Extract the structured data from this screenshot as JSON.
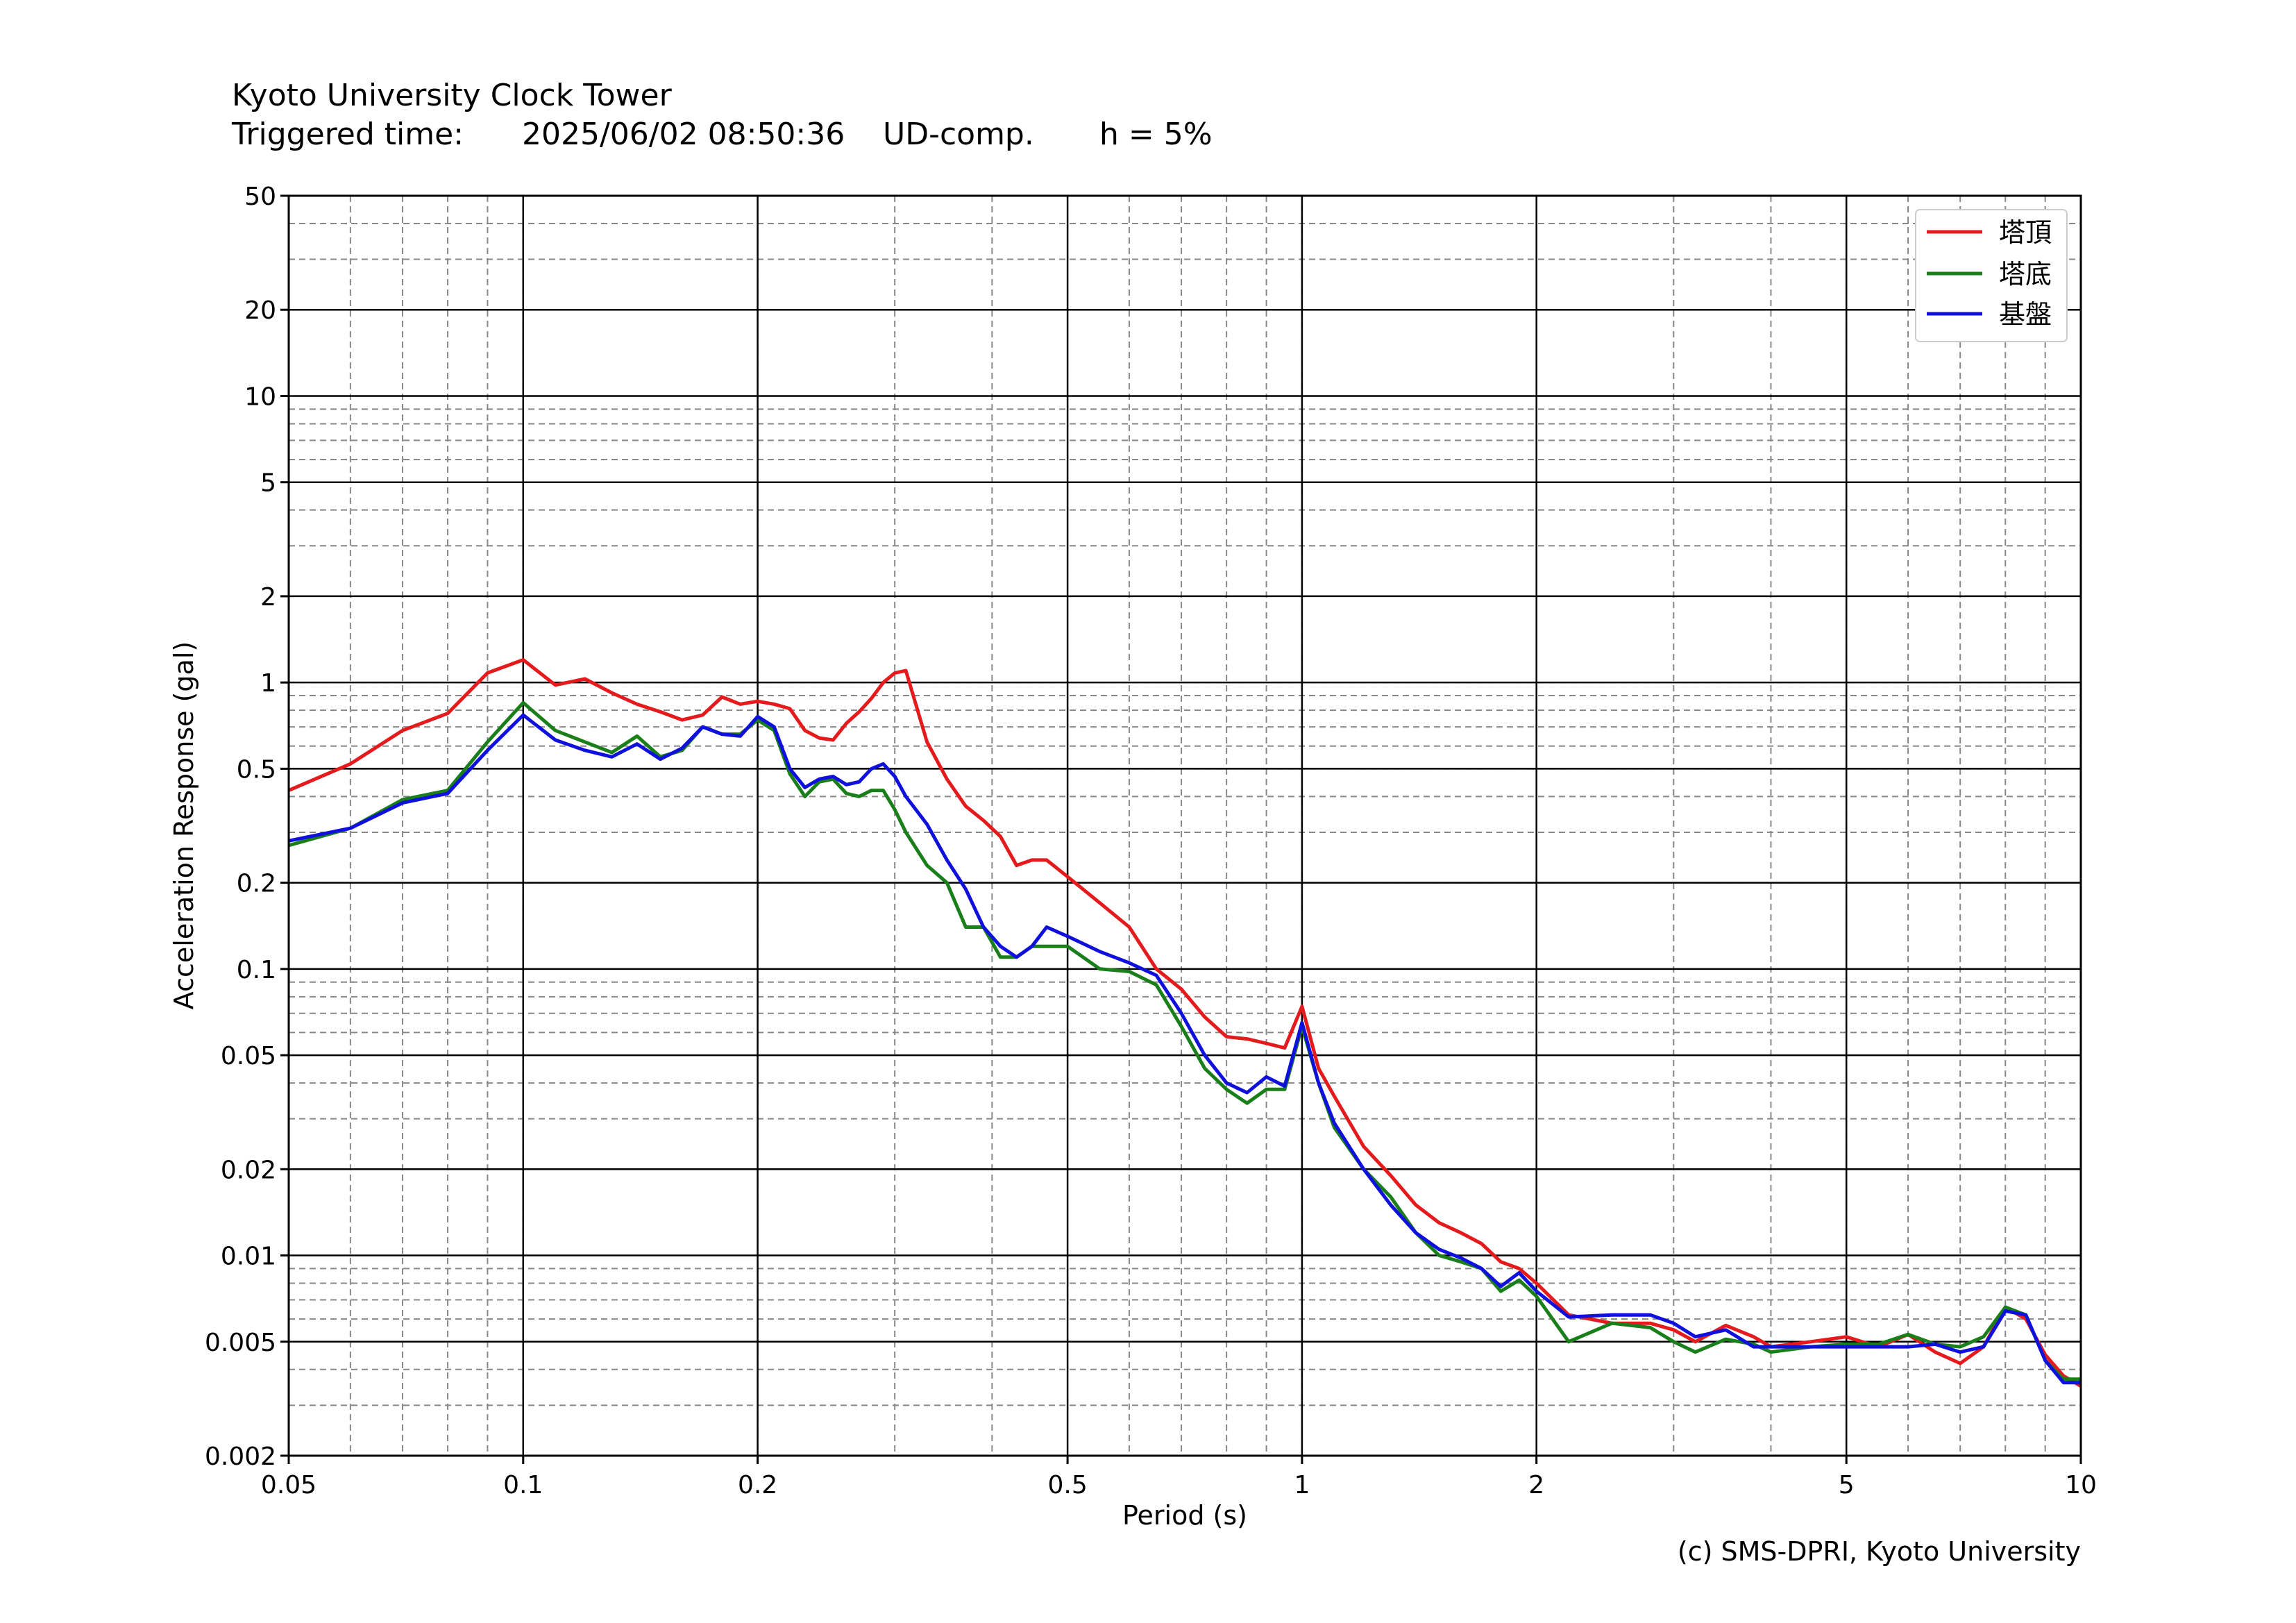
{
  "header": {
    "title": "Kyoto University Clock Tower",
    "triggered_label": "Triggered time:",
    "triggered_value": "2025/06/02 08:50:36",
    "component": "UD-comp.",
    "damping": "h = 5%"
  },
  "footer": {
    "credit": "(c) SMS-DPRI, Kyoto University"
  },
  "colors": {
    "series_top": "#e41a1c",
    "series_base": "#1a7f1a",
    "series_ground": "#1010dd",
    "grid_major": "#000000",
    "grid_minor": "#888888"
  },
  "chart_data": {
    "type": "line",
    "xlabel": "Period (s)",
    "ylabel": "Acceleration Response (gal)",
    "xscale": "log",
    "yscale": "log",
    "xlim": [
      0.05,
      10
    ],
    "ylim": [
      0.002,
      50
    ],
    "grid": true,
    "legend_position": "top-right",
    "x_ticks": [
      0.05,
      0.1,
      0.2,
      0.5,
      1,
      2,
      5,
      10
    ],
    "x_tick_labels": [
      "0.05",
      "0.1",
      "0.2",
      "0.5",
      "1",
      "2",
      "5",
      "10"
    ],
    "y_ticks": [
      0.002,
      0.005,
      0.01,
      0.02,
      0.05,
      0.1,
      0.2,
      0.5,
      1,
      2,
      5,
      10,
      20,
      50
    ],
    "y_tick_labels": [
      "0.002",
      "0.005",
      "0.01",
      "0.02",
      "0.05",
      "0.1",
      "0.2",
      "0.5",
      "1",
      "2",
      "5",
      "10",
      "20",
      "50"
    ],
    "series": [
      {
        "name": "塔頂",
        "color": "#e41a1c",
        "x": [
          0.05,
          0.06,
          0.07,
          0.08,
          0.09,
          0.1,
          0.11,
          0.12,
          0.13,
          0.14,
          0.15,
          0.16,
          0.17,
          0.18,
          0.19,
          0.2,
          0.21,
          0.22,
          0.23,
          0.24,
          0.25,
          0.26,
          0.27,
          0.28,
          0.29,
          0.3,
          0.31,
          0.33,
          0.35,
          0.37,
          0.39,
          0.41,
          0.43,
          0.45,
          0.47,
          0.5,
          0.55,
          0.6,
          0.65,
          0.7,
          0.75,
          0.8,
          0.85,
          0.9,
          0.95,
          1.0,
          1.05,
          1.1,
          1.2,
          1.3,
          1.4,
          1.5,
          1.6,
          1.7,
          1.8,
          1.9,
          2.0,
          2.2,
          2.5,
          2.8,
          3.0,
          3.2,
          3.5,
          3.8,
          4.0,
          4.5,
          5.0,
          5.5,
          6.0,
          6.5,
          7.0,
          7.5,
          8.0,
          8.5,
          9.0,
          9.5,
          10.0
        ],
        "values": [
          0.42,
          0.52,
          0.68,
          0.78,
          1.08,
          1.2,
          0.98,
          1.03,
          0.92,
          0.84,
          0.79,
          0.74,
          0.77,
          0.89,
          0.84,
          0.86,
          0.84,
          0.81,
          0.68,
          0.64,
          0.63,
          0.72,
          0.79,
          0.88,
          1.0,
          1.08,
          1.1,
          0.62,
          0.46,
          0.37,
          0.33,
          0.29,
          0.23,
          0.24,
          0.24,
          0.21,
          0.17,
          0.14,
          0.1,
          0.085,
          0.068,
          0.058,
          0.057,
          0.055,
          0.053,
          0.074,
          0.045,
          0.036,
          0.024,
          0.019,
          0.015,
          0.013,
          0.012,
          0.011,
          0.0095,
          0.009,
          0.008,
          0.0062,
          0.0058,
          0.0058,
          0.0055,
          0.005,
          0.0057,
          0.0052,
          0.0048,
          0.005,
          0.0052,
          0.0048,
          0.0053,
          0.0046,
          0.0042,
          0.0048,
          0.0066,
          0.006,
          0.0045,
          0.0038,
          0.0035
        ]
      },
      {
        "name": "塔底",
        "color": "#1a7f1a",
        "x": [
          0.05,
          0.06,
          0.07,
          0.08,
          0.09,
          0.1,
          0.11,
          0.12,
          0.13,
          0.14,
          0.15,
          0.16,
          0.17,
          0.18,
          0.19,
          0.2,
          0.21,
          0.22,
          0.23,
          0.24,
          0.25,
          0.26,
          0.27,
          0.28,
          0.29,
          0.3,
          0.31,
          0.33,
          0.35,
          0.37,
          0.39,
          0.41,
          0.43,
          0.45,
          0.47,
          0.5,
          0.55,
          0.6,
          0.65,
          0.7,
          0.75,
          0.8,
          0.85,
          0.9,
          0.95,
          1.0,
          1.05,
          1.1,
          1.2,
          1.3,
          1.4,
          1.5,
          1.6,
          1.7,
          1.8,
          1.9,
          2.0,
          2.2,
          2.5,
          2.8,
          3.0,
          3.2,
          3.5,
          3.8,
          4.0,
          4.5,
          5.0,
          5.5,
          6.0,
          6.5,
          7.0,
          7.5,
          8.0,
          8.5,
          9.0,
          9.5,
          10.0
        ],
        "values": [
          0.27,
          0.31,
          0.39,
          0.42,
          0.62,
          0.85,
          0.68,
          0.62,
          0.57,
          0.65,
          0.55,
          0.58,
          0.7,
          0.66,
          0.66,
          0.74,
          0.68,
          0.48,
          0.4,
          0.45,
          0.46,
          0.41,
          0.4,
          0.42,
          0.42,
          0.36,
          0.3,
          0.23,
          0.2,
          0.14,
          0.14,
          0.11,
          0.11,
          0.12,
          0.12,
          0.12,
          0.1,
          0.098,
          0.088,
          0.063,
          0.045,
          0.038,
          0.034,
          0.038,
          0.038,
          0.063,
          0.04,
          0.028,
          0.02,
          0.016,
          0.012,
          0.01,
          0.0095,
          0.009,
          0.0075,
          0.0082,
          0.0072,
          0.005,
          0.0058,
          0.0056,
          0.005,
          0.0046,
          0.0051,
          0.0049,
          0.0046,
          0.0048,
          0.0049,
          0.0049,
          0.0053,
          0.0049,
          0.0048,
          0.0052,
          0.0066,
          0.0062,
          0.0043,
          0.0037,
          0.0037
        ]
      },
      {
        "name": "基盤",
        "color": "#1010dd",
        "x": [
          0.05,
          0.06,
          0.07,
          0.08,
          0.09,
          0.1,
          0.11,
          0.12,
          0.13,
          0.14,
          0.15,
          0.16,
          0.17,
          0.18,
          0.19,
          0.2,
          0.21,
          0.22,
          0.23,
          0.24,
          0.25,
          0.26,
          0.27,
          0.28,
          0.29,
          0.3,
          0.31,
          0.33,
          0.35,
          0.37,
          0.39,
          0.41,
          0.43,
          0.45,
          0.47,
          0.5,
          0.55,
          0.6,
          0.65,
          0.7,
          0.75,
          0.8,
          0.85,
          0.9,
          0.95,
          1.0,
          1.05,
          1.1,
          1.2,
          1.3,
          1.4,
          1.5,
          1.6,
          1.7,
          1.8,
          1.9,
          2.0,
          2.2,
          2.5,
          2.8,
          3.0,
          3.2,
          3.5,
          3.8,
          4.0,
          4.5,
          5.0,
          5.5,
          6.0,
          6.5,
          7.0,
          7.5,
          8.0,
          8.5,
          9.0,
          9.5,
          10.0
        ],
        "values": [
          0.28,
          0.31,
          0.38,
          0.41,
          0.58,
          0.77,
          0.63,
          0.58,
          0.55,
          0.61,
          0.54,
          0.59,
          0.7,
          0.66,
          0.65,
          0.76,
          0.7,
          0.5,
          0.43,
          0.46,
          0.47,
          0.44,
          0.45,
          0.5,
          0.52,
          0.47,
          0.4,
          0.32,
          0.24,
          0.19,
          0.14,
          0.12,
          0.11,
          0.12,
          0.14,
          0.13,
          0.115,
          0.105,
          0.095,
          0.07,
          0.05,
          0.04,
          0.037,
          0.042,
          0.039,
          0.065,
          0.04,
          0.029,
          0.02,
          0.015,
          0.012,
          0.0105,
          0.0098,
          0.009,
          0.0078,
          0.0087,
          0.0075,
          0.0061,
          0.0062,
          0.0062,
          0.0058,
          0.0052,
          0.0055,
          0.0048,
          0.0048,
          0.0048,
          0.0048,
          0.0048,
          0.0048,
          0.0049,
          0.0046,
          0.0048,
          0.0064,
          0.0062,
          0.0043,
          0.0036,
          0.0036
        ]
      }
    ]
  }
}
